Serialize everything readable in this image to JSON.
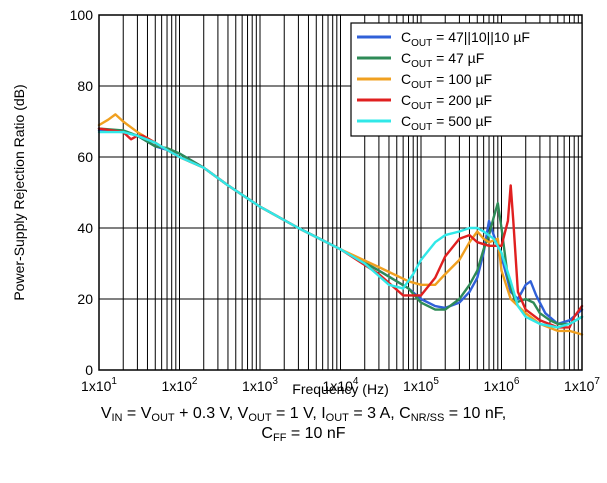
{
  "chart_data": {
    "type": "line",
    "xlabel": "Frequency (Hz)",
    "ylabel": "Power-Supply Rejection Ratio (dB)",
    "x_scale": "log",
    "xlim": [
      10,
      10000000
    ],
    "ylim": [
      0,
      100
    ],
    "grid": true,
    "legend_position": "top-right",
    "x_ticks": [
      {
        "value": 10,
        "base": "1x10",
        "exp": "1"
      },
      {
        "value": 100,
        "base": "1x10",
        "exp": "2"
      },
      {
        "value": 1000,
        "base": "1x10",
        "exp": "3"
      },
      {
        "value": 10000,
        "base": "1x10",
        "exp": "4"
      },
      {
        "value": 100000,
        "base": "1x10",
        "exp": "5"
      },
      {
        "value": 1000000,
        "base": "1x10",
        "exp": "6"
      },
      {
        "value": 10000000,
        "base": "1x10",
        "exp": "7"
      }
    ],
    "y_ticks": [
      {
        "value": 0,
        "label": "0"
      },
      {
        "value": 20,
        "label": "20"
      },
      {
        "value": 40,
        "label": "40"
      },
      {
        "value": 60,
        "label": "60"
      },
      {
        "value": 80,
        "label": "80"
      },
      {
        "value": 100,
        "label": "100"
      }
    ],
    "series": [
      {
        "name_main": "C",
        "name_sub": "OUT",
        "name_rest": " = 47||10||10 µF",
        "color": "#3060d8",
        "points": [
          [
            10,
            67.5
          ],
          [
            20,
            67
          ],
          [
            30,
            66
          ],
          [
            50,
            63
          ],
          [
            70,
            62
          ],
          [
            100,
            61
          ],
          [
            200,
            57
          ],
          [
            400,
            52
          ],
          [
            1000,
            46
          ],
          [
            3000,
            40
          ],
          [
            10000,
            34
          ],
          [
            30000,
            28
          ],
          [
            70000,
            23
          ],
          [
            100000,
            20
          ],
          [
            150000,
            18
          ],
          [
            200000,
            17.5
          ],
          [
            300000,
            19
          ],
          [
            400000,
            22
          ],
          [
            500000,
            26
          ],
          [
            600000,
            33
          ],
          [
            700000,
            42
          ],
          [
            800000,
            38
          ],
          [
            1000000,
            32
          ],
          [
            1300000,
            22
          ],
          [
            1600000,
            20
          ],
          [
            2000000,
            24
          ],
          [
            2300000,
            25
          ],
          [
            2700000,
            21
          ],
          [
            3500000,
            16
          ],
          [
            5000000,
            13
          ],
          [
            7000000,
            14
          ],
          [
            10000000,
            17
          ]
        ]
      },
      {
        "name_main": "C",
        "name_sub": "OUT",
        "name_rest": " = 47 µF",
        "color": "#2e8b57",
        "points": [
          [
            10,
            68
          ],
          [
            20,
            67.5
          ],
          [
            30,
            66
          ],
          [
            50,
            63
          ],
          [
            70,
            62.5
          ],
          [
            100,
            61
          ],
          [
            200,
            57
          ],
          [
            400,
            52
          ],
          [
            1000,
            46
          ],
          [
            3000,
            40
          ],
          [
            10000,
            34
          ],
          [
            30000,
            28
          ],
          [
            70000,
            23
          ],
          [
            100000,
            19
          ],
          [
            150000,
            17
          ],
          [
            200000,
            17
          ],
          [
            300000,
            20
          ],
          [
            400000,
            24
          ],
          [
            500000,
            28
          ],
          [
            600000,
            34
          ],
          [
            700000,
            38
          ],
          [
            800000,
            43
          ],
          [
            900000,
            47
          ],
          [
            1000000,
            40
          ],
          [
            1200000,
            26
          ],
          [
            1500000,
            19
          ],
          [
            2000000,
            20
          ],
          [
            2500000,
            19
          ],
          [
            3000000,
            16
          ],
          [
            4000000,
            14
          ],
          [
            5000000,
            13
          ],
          [
            7000000,
            13
          ],
          [
            10000000,
            15
          ]
        ]
      },
      {
        "name_main": "C",
        "name_sub": "OUT",
        "name_rest": " = 100 µF",
        "color": "#f0a020",
        "points": [
          [
            10,
            69
          ],
          [
            13,
            70.5
          ],
          [
            16,
            72
          ],
          [
            20,
            70
          ],
          [
            30,
            67
          ],
          [
            50,
            64
          ],
          [
            70,
            62
          ],
          [
            100,
            60
          ],
          [
            200,
            57
          ],
          [
            400,
            52
          ],
          [
            1000,
            46
          ],
          [
            3000,
            40
          ],
          [
            10000,
            34
          ],
          [
            30000,
            29
          ],
          [
            70000,
            25
          ],
          [
            100000,
            24
          ],
          [
            150000,
            24
          ],
          [
            200000,
            27
          ],
          [
            300000,
            31
          ],
          [
            400000,
            36
          ],
          [
            500000,
            39
          ],
          [
            600000,
            37
          ],
          [
            700000,
            36
          ],
          [
            900000,
            37
          ],
          [
            1000000,
            28
          ],
          [
            1300000,
            20
          ],
          [
            2000000,
            16
          ],
          [
            3000000,
            13
          ],
          [
            5000000,
            11
          ],
          [
            7000000,
            11
          ],
          [
            10000000,
            10
          ]
        ]
      },
      {
        "name_main": "C",
        "name_sub": "OUT",
        "name_rest": " = 200 µF",
        "color": "#e02020",
        "points": [
          [
            10,
            68
          ],
          [
            20,
            67
          ],
          [
            25,
            65
          ],
          [
            30,
            66
          ],
          [
            35,
            66
          ],
          [
            50,
            64
          ],
          [
            70,
            62
          ],
          [
            100,
            60
          ],
          [
            200,
            57
          ],
          [
            400,
            52
          ],
          [
            1000,
            46
          ],
          [
            3000,
            40
          ],
          [
            10000,
            34
          ],
          [
            30000,
            27
          ],
          [
            60000,
            21
          ],
          [
            100000,
            21
          ],
          [
            150000,
            26
          ],
          [
            200000,
            32
          ],
          [
            300000,
            37
          ],
          [
            400000,
            38
          ],
          [
            500000,
            36
          ],
          [
            700000,
            35
          ],
          [
            1000000,
            35
          ],
          [
            1200000,
            42
          ],
          [
            1300000,
            52
          ],
          [
            1400000,
            42
          ],
          [
            1600000,
            22
          ],
          [
            2000000,
            17
          ],
          [
            3000000,
            14
          ],
          [
            5000000,
            12
          ],
          [
            7000000,
            12
          ],
          [
            8000000,
            15
          ],
          [
            10000000,
            18
          ]
        ]
      },
      {
        "name_main": "C",
        "name_sub": "OUT",
        "name_rest": " = 500 µF",
        "color": "#30e8e8",
        "points": [
          [
            10,
            67
          ],
          [
            20,
            67
          ],
          [
            30,
            66
          ],
          [
            50,
            64
          ],
          [
            70,
            62
          ],
          [
            100,
            60
          ],
          [
            200,
            57
          ],
          [
            400,
            52
          ],
          [
            1000,
            46
          ],
          [
            3000,
            40
          ],
          [
            10000,
            34
          ],
          [
            20000,
            30
          ],
          [
            40000,
            24
          ],
          [
            60000,
            23
          ],
          [
            80000,
            27
          ],
          [
            100000,
            31
          ],
          [
            150000,
            36
          ],
          [
            200000,
            38
          ],
          [
            300000,
            39
          ],
          [
            400000,
            40
          ],
          [
            500000,
            40
          ],
          [
            600000,
            39
          ],
          [
            800000,
            37
          ],
          [
            1000000,
            33
          ],
          [
            1300000,
            25
          ],
          [
            1600000,
            18
          ],
          [
            2000000,
            15
          ],
          [
            3000000,
            13
          ],
          [
            5000000,
            12
          ],
          [
            7000000,
            13
          ],
          [
            10000000,
            15
          ]
        ]
      }
    ]
  },
  "caption": {
    "line1": [
      {
        "t": "V"
      },
      {
        "s": "IN"
      },
      {
        "t": " = V"
      },
      {
        "s": "OUT"
      },
      {
        "t": " + 0.3 V, V"
      },
      {
        "s": "OUT"
      },
      {
        "t": " = 1 V, I"
      },
      {
        "s": "OUT"
      },
      {
        "t": " = 3 A, C"
      },
      {
        "s": "NR/SS"
      },
      {
        "t": " = 10 nF,"
      }
    ],
    "line2": [
      {
        "t": "C"
      },
      {
        "s": "FF"
      },
      {
        "t": " = 10 nF"
      }
    ]
  }
}
